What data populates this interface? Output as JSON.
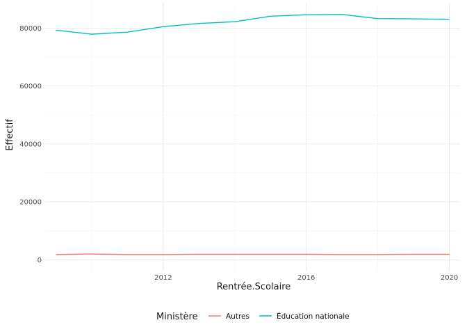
{
  "chart_data": {
    "type": "line",
    "xlabel": "Rentrée.Scolaire",
    "ylabel": "Effectif",
    "xlim": [
      2008.7,
      2020.3
    ],
    "ylim": [
      -4000,
      88500
    ],
    "x_ticks": [
      2012,
      2016,
      2020
    ],
    "y_ticks": [
      0,
      20000,
      40000,
      60000,
      80000
    ],
    "grid": true,
    "legend": {
      "title": "Ministère",
      "position": "bottom",
      "entries": [
        "Autres",
        "Éducation nationale"
      ]
    },
    "x": [
      2009,
      2010,
      2011,
      2012,
      2013,
      2014,
      2015,
      2016,
      2017,
      2018,
      2019,
      2020
    ],
    "series": [
      {
        "name": "Autres",
        "color": "#F8766D",
        "values": [
          1800,
          2000,
          1800,
          1800,
          1900,
          1900,
          1900,
          1900,
          1800,
          1800,
          1900,
          1900
        ]
      },
      {
        "name": "Éducation nationale",
        "color": "#00BFC4",
        "values": [
          79300,
          77900,
          78600,
          80500,
          81600,
          82200,
          84100,
          84600,
          84700,
          83300,
          83200,
          83000
        ]
      }
    ]
  }
}
